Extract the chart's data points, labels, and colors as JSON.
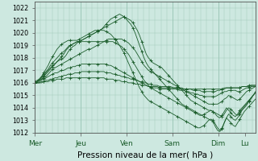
{
  "xlabel": "Pression niveau de la mer( hPa )",
  "ylim": [
    1012,
    1022.5
  ],
  "yticks": [
    1012,
    1013,
    1014,
    1015,
    1016,
    1017,
    1018,
    1019,
    1020,
    1021,
    1022
  ],
  "day_labels": [
    "Mer",
    "Jeu",
    "Ven",
    "Sam",
    "Dim",
    "Lu"
  ],
  "day_positions": [
    0,
    48,
    96,
    144,
    192,
    220
  ],
  "total_points": 232,
  "bg_color": "#cde8e0",
  "grid_color": "#9dc8b8",
  "line_color": "#1a5c2a",
  "lines": [
    [
      1016.0,
      1016.1,
      1016.2,
      1016.3,
      1016.5,
      1016.7,
      1016.9,
      1017.1,
      1017.3,
      1017.5,
      1017.7,
      1017.8,
      1017.9,
      1018.0,
      1018.2,
      1018.5,
      1018.7,
      1018.9,
      1019.0,
      1019.2,
      1019.3,
      1019.4,
      1019.5,
      1019.6,
      1019.7,
      1019.8,
      1019.9,
      1020.0,
      1020.1,
      1020.2,
      1020.3,
      1020.4,
      1020.5,
      1020.6,
      1020.7,
      1020.8,
      1020.9,
      1021.0,
      1021.1,
      1021.2,
      1021.3,
      1021.2,
      1021.1,
      1021.0,
      1020.8,
      1020.5,
      1020.2,
      1019.8,
      1019.3,
      1018.8,
      1018.3,
      1018.0,
      1017.8,
      1017.6,
      1017.5,
      1017.4,
      1017.3,
      1017.2,
      1017.0,
      1016.8,
      1016.6,
      1016.4,
      1016.2,
      1016.0,
      1015.8,
      1015.6,
      1015.4,
      1015.2,
      1015.0,
      1014.8,
      1014.6,
      1014.5,
      1014.4,
      1014.3,
      1014.2,
      1014.1,
      1014.0,
      1013.9,
      1013.8,
      1013.8,
      1013.7,
      1013.6,
      1013.5,
      1013.4,
      1013.3,
      1013.5,
      1013.8,
      1014.0,
      1013.9,
      1013.7,
      1013.5,
      1013.4,
      1013.6,
      1013.9,
      1014.1,
      1014.3,
      1014.5,
      1014.7,
      1015.0,
      1015.2
    ],
    [
      1016.0,
      1016.1,
      1016.2,
      1016.4,
      1016.6,
      1016.8,
      1017.0,
      1017.2,
      1017.4,
      1017.5,
      1017.7,
      1017.9,
      1018.1,
      1018.3,
      1018.6,
      1018.8,
      1019.0,
      1019.1,
      1019.2,
      1019.3,
      1019.3,
      1019.4,
      1019.5,
      1019.6,
      1019.7,
      1019.8,
      1019.9,
      1020.0,
      1020.1,
      1020.2,
      1020.3,
      1020.5,
      1020.7,
      1020.9,
      1021.1,
      1021.2,
      1021.3,
      1021.4,
      1021.5,
      1021.4,
      1021.3,
      1021.1,
      1020.9,
      1020.7,
      1020.4,
      1020.0,
      1019.5,
      1019.0,
      1018.5,
      1018.0,
      1017.6,
      1017.3,
      1017.1,
      1016.9,
      1016.7,
      1016.5,
      1016.3,
      1016.1,
      1015.9,
      1015.7,
      1015.5,
      1015.3,
      1015.1,
      1014.9,
      1014.7,
      1014.5,
      1014.3,
      1014.2,
      1014.1,
      1014.0,
      1013.9,
      1013.8,
      1013.7,
      1013.6,
      1013.5,
      1013.4,
      1013.3,
      1013.2,
      1013.1,
      1013.0,
      1012.9,
      1012.5,
      1012.2,
      1012.1,
      1012.3,
      1012.8,
      1013.2,
      1013.5,
      1013.3,
      1013.1,
      1013.0,
      1013.2,
      1013.5,
      1013.8,
      1014.0,
      1014.2,
      1014.5,
      1014.8,
      1015.0,
      1015.3
    ],
    [
      1016.0,
      1016.1,
      1016.2,
      1016.3,
      1016.4,
      1016.5,
      1016.7,
      1016.9,
      1017.1,
      1017.2,
      1017.3,
      1017.4,
      1017.5,
      1017.6,
      1017.7,
      1017.8,
      1017.9,
      1018.0,
      1018.1,
      1018.2,
      1018.3,
      1018.4,
      1018.5,
      1018.6,
      1018.7,
      1018.7,
      1018.8,
      1018.9,
      1019.0,
      1019.1,
      1019.2,
      1019.3,
      1019.4,
      1019.5,
      1019.5,
      1019.5,
      1019.5,
      1019.5,
      1019.5,
      1019.5,
      1019.4,
      1019.3,
      1019.2,
      1019.0,
      1018.8,
      1018.6,
      1018.3,
      1018.0,
      1017.7,
      1017.4,
      1017.2,
      1017.0,
      1016.9,
      1016.8,
      1016.7,
      1016.6,
      1016.5,
      1016.4,
      1016.3,
      1016.2,
      1016.1,
      1016.0,
      1015.9,
      1015.8,
      1015.7,
      1015.6,
      1015.5,
      1015.4,
      1015.3,
      1015.2,
      1015.1,
      1015.0,
      1014.9,
      1014.8,
      1014.7,
      1014.6,
      1014.5,
      1014.4,
      1014.3,
      1014.3,
      1014.3,
      1014.3,
      1014.3,
      1014.4,
      1014.5,
      1014.7,
      1014.8,
      1015.0,
      1014.9,
      1014.8,
      1014.7,
      1014.6,
      1014.7,
      1014.9,
      1015.1,
      1015.3,
      1015.4,
      1015.5,
      1015.6,
      1015.7
    ],
    [
      1016.0,
      1016.0,
      1016.1,
      1016.2,
      1016.3,
      1016.4,
      1016.5,
      1016.6,
      1016.7,
      1016.8,
      1016.8,
      1016.9,
      1017.0,
      1017.0,
      1017.1,
      1017.2,
      1017.2,
      1017.3,
      1017.3,
      1017.4,
      1017.4,
      1017.5,
      1017.5,
      1017.5,
      1017.5,
      1017.5,
      1017.5,
      1017.5,
      1017.5,
      1017.5,
      1017.5,
      1017.5,
      1017.5,
      1017.4,
      1017.4,
      1017.3,
      1017.2,
      1017.1,
      1017.0,
      1016.9,
      1016.8,
      1016.7,
      1016.6,
      1016.5,
      1016.4,
      1016.3,
      1016.2,
      1016.1,
      1016.0,
      1015.9,
      1015.8,
      1015.7,
      1015.7,
      1015.6,
      1015.6,
      1015.6,
      1015.5,
      1015.5,
      1015.5,
      1015.5,
      1015.5,
      1015.5,
      1015.5,
      1015.5,
      1015.5,
      1015.4,
      1015.4,
      1015.4,
      1015.3,
      1015.3,
      1015.2,
      1015.2,
      1015.1,
      1015.1,
      1015.0,
      1015.0,
      1014.9,
      1014.9,
      1014.9,
      1014.9,
      1014.9,
      1014.9,
      1015.0,
      1015.1,
      1015.2,
      1015.3,
      1015.3,
      1015.4,
      1015.4,
      1015.4,
      1015.4,
      1015.3,
      1015.3,
      1015.4,
      1015.5,
      1015.6,
      1015.6,
      1015.7,
      1015.7,
      1015.7
    ],
    [
      1016.0,
      1016.0,
      1016.0,
      1016.1,
      1016.1,
      1016.2,
      1016.2,
      1016.3,
      1016.3,
      1016.4,
      1016.4,
      1016.5,
      1016.5,
      1016.6,
      1016.6,
      1016.7,
      1016.7,
      1016.7,
      1016.8,
      1016.8,
      1016.8,
      1016.9,
      1016.9,
      1016.9,
      1016.9,
      1016.9,
      1016.9,
      1016.9,
      1016.9,
      1016.9,
      1016.9,
      1016.9,
      1016.8,
      1016.8,
      1016.8,
      1016.7,
      1016.7,
      1016.6,
      1016.6,
      1016.5,
      1016.5,
      1016.4,
      1016.4,
      1016.3,
      1016.3,
      1016.2,
      1016.2,
      1016.1,
      1016.1,
      1016.0,
      1016.0,
      1015.9,
      1015.9,
      1015.8,
      1015.8,
      1015.8,
      1015.7,
      1015.7,
      1015.7,
      1015.7,
      1015.7,
      1015.7,
      1015.6,
      1015.6,
      1015.6,
      1015.6,
      1015.6,
      1015.5,
      1015.5,
      1015.5,
      1015.5,
      1015.4,
      1015.4,
      1015.4,
      1015.4,
      1015.3,
      1015.3,
      1015.3,
      1015.3,
      1015.3,
      1015.3,
      1015.3,
      1015.4,
      1015.4,
      1015.5,
      1015.5,
      1015.6,
      1015.6,
      1015.6,
      1015.6,
      1015.6,
      1015.6,
      1015.6,
      1015.7,
      1015.7,
      1015.7,
      1015.8,
      1015.8,
      1015.8,
      1015.8
    ],
    [
      1016.0,
      1016.0,
      1016.0,
      1016.0,
      1016.1,
      1016.1,
      1016.1,
      1016.2,
      1016.2,
      1016.2,
      1016.3,
      1016.3,
      1016.3,
      1016.3,
      1016.4,
      1016.4,
      1016.4,
      1016.4,
      1016.4,
      1016.4,
      1016.4,
      1016.4,
      1016.4,
      1016.4,
      1016.4,
      1016.4,
      1016.4,
      1016.4,
      1016.4,
      1016.4,
      1016.4,
      1016.4,
      1016.3,
      1016.3,
      1016.3,
      1016.3,
      1016.2,
      1016.2,
      1016.2,
      1016.1,
      1016.1,
      1016.1,
      1016.0,
      1016.0,
      1016.0,
      1015.9,
      1015.9,
      1015.9,
      1015.8,
      1015.8,
      1015.8,
      1015.7,
      1015.7,
      1015.7,
      1015.7,
      1015.7,
      1015.6,
      1015.6,
      1015.6,
      1015.6,
      1015.6,
      1015.6,
      1015.6,
      1015.6,
      1015.6,
      1015.5,
      1015.5,
      1015.5,
      1015.5,
      1015.5,
      1015.5,
      1015.5,
      1015.5,
      1015.5,
      1015.5,
      1015.5,
      1015.5,
      1015.5,
      1015.5,
      1015.5,
      1015.5,
      1015.5,
      1015.5,
      1015.5,
      1015.5,
      1015.6,
      1015.6,
      1015.6,
      1015.6,
      1015.6,
      1015.6,
      1015.6,
      1015.6,
      1015.7,
      1015.7,
      1015.7,
      1015.7,
      1015.8,
      1015.8,
      1015.8
    ],
    [
      1016.1,
      1016.2,
      1016.3,
      1016.5,
      1016.7,
      1016.9,
      1017.1,
      1017.4,
      1017.6,
      1017.8,
      1018.0,
      1018.2,
      1018.4,
      1018.5,
      1018.7,
      1018.9,
      1019.0,
      1019.1,
      1019.2,
      1019.3,
      1019.3,
      1019.3,
      1019.3,
      1019.3,
      1019.3,
      1019.3,
      1019.3,
      1019.3,
      1019.3,
      1019.3,
      1019.3,
      1019.3,
      1019.3,
      1019.3,
      1019.3,
      1019.3,
      1019.2,
      1019.1,
      1019.0,
      1018.9,
      1018.7,
      1018.5,
      1018.3,
      1018.0,
      1017.7,
      1017.4,
      1017.1,
      1016.8,
      1016.5,
      1016.2,
      1016.0,
      1015.8,
      1015.6,
      1015.5,
      1015.4,
      1015.3,
      1015.2,
      1015.1,
      1015.0,
      1014.9,
      1014.8,
      1014.7,
      1014.6,
      1014.5,
      1014.4,
      1014.3,
      1014.2,
      1014.1,
      1014.0,
      1013.9,
      1013.8,
      1013.7,
      1013.6,
      1013.5,
      1013.4,
      1013.4,
      1013.5,
      1013.6,
      1013.7,
      1013.8,
      1013.7,
      1013.5,
      1013.3,
      1013.2,
      1013.4,
      1013.7,
      1014.0,
      1013.8,
      1013.6,
      1013.4,
      1013.3,
      1013.5,
      1013.8,
      1014.0,
      1014.2,
      1014.4,
      1014.6,
      1014.8,
      1015.0,
      1015.2
    ],
    [
      1016.0,
      1016.1,
      1016.3,
      1016.5,
      1016.8,
      1017.1,
      1017.4,
      1017.8,
      1018.1,
      1018.4,
      1018.7,
      1018.9,
      1019.1,
      1019.2,
      1019.3,
      1019.4,
      1019.4,
      1019.4,
      1019.4,
      1019.4,
      1019.5,
      1019.6,
      1019.7,
      1019.8,
      1019.9,
      1020.0,
      1020.1,
      1020.2,
      1020.2,
      1020.2,
      1020.2,
      1020.2,
      1020.1,
      1020.0,
      1019.9,
      1019.7,
      1019.5,
      1019.3,
      1019.0,
      1018.7,
      1018.4,
      1018.0,
      1017.6,
      1017.2,
      1016.8,
      1016.4,
      1016.0,
      1015.6,
      1015.3,
      1015.0,
      1014.8,
      1014.6,
      1014.5,
      1014.4,
      1014.3,
      1014.2,
      1014.1,
      1014.0,
      1013.9,
      1013.8,
      1013.7,
      1013.6,
      1013.5,
      1013.4,
      1013.3,
      1013.2,
      1013.1,
      1013.0,
      1012.9,
      1012.8,
      1012.7,
      1012.6,
      1012.5,
      1012.4,
      1012.4,
      1012.5,
      1012.6,
      1012.8,
      1013.0,
      1013.1,
      1013.0,
      1012.7,
      1012.4,
      1012.2,
      1012.4,
      1012.8,
      1013.2,
      1013.0,
      1012.8,
      1012.6,
      1012.5,
      1012.8,
      1013.1,
      1013.4,
      1013.7,
      1013.9,
      1014.1,
      1014.3,
      1014.5,
      1014.7
    ]
  ]
}
